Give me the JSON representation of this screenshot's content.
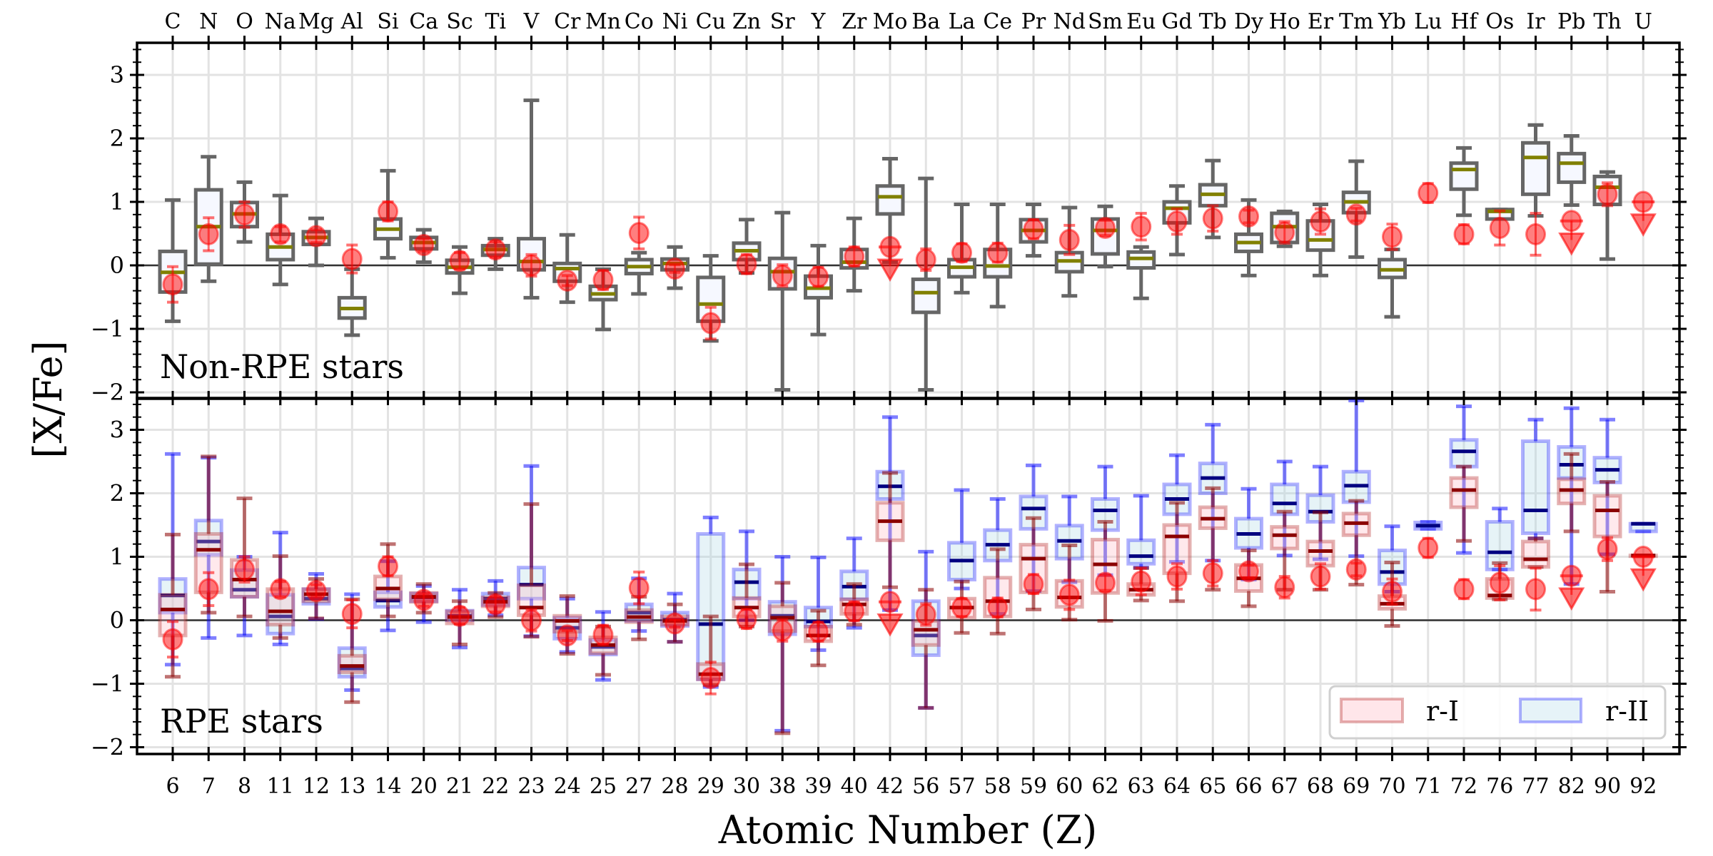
{
  "chart_data": {
    "type": "box",
    "xlabel": "Atomic Number (Z)",
    "ylabel": "[X/Fe]",
    "ylim": [
      -2.1,
      3.5
    ],
    "yticks": [
      -2,
      -1,
      0,
      1,
      2,
      3
    ],
    "grid": true,
    "legend_position": "bottom-right",
    "colors": {
      "non_box": "#666666",
      "non_median": "#808000",
      "rI_median": "#8b0000",
      "rII_median": "#000080",
      "star": "#ff0000"
    },
    "panels": [
      {
        "id": "top",
        "label": "Non-RPE stars",
        "series": "non"
      },
      {
        "id": "bottom",
        "label": "RPE stars",
        "series": "r"
      }
    ],
    "legend": [
      {
        "key": "rI",
        "label": "r-I"
      },
      {
        "key": "rII",
        "label": "r-II"
      }
    ],
    "box_format": [
      "whisker_low",
      "q1",
      "median",
      "q3",
      "whisker_high"
    ],
    "elements": [
      {
        "sym": "C",
        "z": "6",
        "non": [
          -0.88,
          -0.42,
          -0.11,
          0.22,
          1.03
        ],
        "rI": [
          -0.89,
          -0.24,
          0.17,
          0.4,
          1.35
        ],
        "rII": [
          -0.7,
          0.12,
          0.39,
          0.65,
          2.62
        ],
        "star": {
          "v": -0.3,
          "e": 0.28
        }
      },
      {
        "sym": "N",
        "z": "7",
        "non": [
          -0.25,
          0.02,
          0.61,
          1.19,
          1.71
        ],
        "rI": [
          0.12,
          0.44,
          1.11,
          1.36,
          2.58
        ],
        "rII": [
          -0.28,
          1.03,
          1.24,
          1.57,
          2.56
        ],
        "star": {
          "v": 0.49,
          "e": 0.26
        }
      },
      {
        "sym": "O",
        "z": "8",
        "non": [
          0.37,
          0.61,
          0.81,
          0.99,
          1.31
        ],
        "rI": [
          0.06,
          0.37,
          0.64,
          0.95,
          1.92
        ],
        "rII": [
          -0.24,
          0.37,
          0.48,
          0.79,
          1.0
        ],
        "star": {
          "v": 0.8,
          "e": 0.2
        }
      },
      {
        "sym": "Na",
        "z": "11",
        "non": [
          -0.3,
          0.09,
          0.29,
          0.49,
          1.1
        ],
        "rI": [
          -0.28,
          -0.07,
          0.14,
          0.49,
          1.01
        ],
        "rII": [
          -0.38,
          -0.21,
          0.06,
          0.4,
          1.38
        ],
        "star": {
          "v": 0.49,
          "e": 0.12
        }
      },
      {
        "sym": "Mg",
        "z": "12",
        "non": [
          0,
          0.33,
          0.44,
          0.53,
          0.74
        ],
        "rI": [
          0.03,
          0.3,
          0.41,
          0.49,
          0.65
        ],
        "rII": [
          0.02,
          0.26,
          0.34,
          0.49,
          0.73
        ],
        "star": {
          "v": 0.46,
          "e": 0.1
        }
      },
      {
        "sym": "Al",
        "z": "13",
        "non": [
          -1.1,
          -0.83,
          -0.68,
          -0.51,
          -0.06
        ],
        "rI": [
          -1.29,
          -0.82,
          -0.72,
          -0.56,
          0.33
        ],
        "rII": [
          -1.1,
          -0.89,
          -0.76,
          -0.44,
          0.41
        ],
        "star": {
          "v": 0.1,
          "e": 0.22
        }
      },
      {
        "sym": "Si",
        "z": "14",
        "non": [
          0.12,
          0.42,
          0.57,
          0.73,
          1.49
        ],
        "rI": [
          0.06,
          0.33,
          0.5,
          0.69,
          1.2
        ],
        "rII": [
          -0.16,
          0.21,
          0.31,
          0.44,
          0.93
        ],
        "star": {
          "v": 0.85,
          "e": 0.15
        }
      },
      {
        "sym": "Ca",
        "z": "20",
        "non": [
          0.05,
          0.26,
          0.36,
          0.44,
          0.56
        ],
        "rI": [
          0.12,
          0.29,
          0.37,
          0.43,
          0.57
        ],
        "rII": [
          -0.03,
          0.3,
          0.36,
          0.42,
          0.54
        ],
        "star": {
          "v": 0.32,
          "e": 0.1
        }
      },
      {
        "sym": "Sc",
        "z": "21",
        "non": [
          -0.44,
          -0.12,
          -0.03,
          0.08,
          0.29
        ],
        "rI": [
          -0.38,
          -0.05,
          0.05,
          0.14,
          0.3
        ],
        "rII": [
          -0.43,
          0,
          0.07,
          0.15,
          0.48
        ],
        "star": {
          "v": 0.07,
          "e": 0.13
        }
      },
      {
        "sym": "Ti",
        "z": "22",
        "non": [
          -0.06,
          0.16,
          0.25,
          0.31,
          0.42
        ],
        "rI": [
          0.05,
          0.22,
          0.29,
          0.36,
          0.43
        ],
        "rII": [
          0.08,
          0.24,
          0.34,
          0.42,
          0.62
        ],
        "star": {
          "v": 0.25,
          "e": 0.12
        }
      },
      {
        "sym": "V",
        "z": "23",
        "non": [
          -0.51,
          -0.07,
          0.06,
          0.42,
          2.6
        ],
        "rI": [
          -0.26,
          0.08,
          0.2,
          0.55,
          1.83
        ],
        "rII": [
          -0.25,
          0.34,
          0.56,
          0.83,
          2.43
        ],
        "star": {
          "v": 0.0,
          "e": 0.17
        }
      },
      {
        "sym": "Cr",
        "z": "24",
        "non": [
          -0.58,
          -0.25,
          -0.05,
          0.03,
          0.48
        ],
        "rI": [
          -0.53,
          -0.18,
          -0.01,
          0.07,
          0.38
        ],
        "rII": [
          -0.5,
          -0.29,
          -0.12,
          0.04,
          0.34
        ],
        "star": {
          "v": -0.24,
          "e": 0.08
        }
      },
      {
        "sym": "Mn",
        "z": "25",
        "non": [
          -1.01,
          -0.54,
          -0.45,
          -0.33,
          -0.06
        ],
        "rI": [
          -0.86,
          -0.52,
          -0.39,
          -0.27,
          -0.1
        ],
        "rII": [
          -0.94,
          -0.54,
          -0.42,
          -0.31,
          0.13
        ],
        "star": {
          "v": -0.23,
          "e": 0.15
        }
      },
      {
        "sym": "Co",
        "z": "27",
        "non": [
          -0.45,
          -0.13,
          -0.02,
          0.09,
          0.2
        ],
        "rI": [
          -0.3,
          -0.03,
          0.05,
          0.16,
          0.37
        ],
        "rII": [
          -0.17,
          -0.01,
          0.12,
          0.25,
          0.66
        ],
        "star": {
          "v": 0.51,
          "e": 0.25
        }
      },
      {
        "sym": "Ni",
        "z": "28",
        "non": [
          -0.36,
          -0.07,
          0.03,
          0.1,
          0.29
        ],
        "rI": [
          -0.34,
          -0.07,
          -0.01,
          0.06,
          0.25
        ],
        "rII": [
          -0.34,
          -0.09,
          0.01,
          0.12,
          0.42
        ],
        "star": {
          "v": -0.05,
          "e": 0.06
        }
      },
      {
        "sym": "Cu",
        "z": "29",
        "non": [
          -1.19,
          -0.88,
          -0.61,
          -0.19,
          0.15
        ],
        "rI": [
          -1.02,
          -0.93,
          -0.85,
          -0.69,
          0.06
        ],
        "rII": [
          -1.05,
          -0.93,
          -0.06,
          1.36,
          1.62
        ],
        "star": {
          "v": -0.91,
          "e": 0.25
        }
      },
      {
        "sym": "Zn",
        "z": "30",
        "non": [
          -0.12,
          0.09,
          0.23,
          0.35,
          0.72
        ],
        "rI": [
          -0.1,
          0.06,
          0.2,
          0.35,
          0.88
        ],
        "rII": [
          0,
          0.34,
          0.6,
          0.8,
          1.4
        ],
        "star": {
          "v": 0.02,
          "e": 0.15
        }
      },
      {
        "sym": "Sr",
        "z": "38",
        "non": [
          -1.96,
          -0.37,
          -0.1,
          0.11,
          0.83
        ],
        "rI": [
          -1.78,
          -0.17,
          0.04,
          0.22,
          0.59
        ],
        "rII": [
          -1.74,
          -0.22,
          0.07,
          0.29,
          1.0
        ],
        "star": {
          "v": -0.16,
          "e": 0.17
        }
      },
      {
        "sym": "Y",
        "z": "39",
        "non": [
          -1.09,
          -0.51,
          -0.36,
          -0.17,
          0.31
        ],
        "rI": [
          -0.71,
          -0.33,
          -0.24,
          -0.1,
          0.15
        ],
        "rII": [
          -0.47,
          -0.1,
          -0.02,
          0.2,
          0.99
        ],
        "star": {
          "v": -0.18,
          "e": 0.15
        }
      },
      {
        "sym": "Zr",
        "z": "40",
        "non": [
          -0.4,
          -0.04,
          0.05,
          0.25,
          0.74
        ],
        "rI": [
          -0.07,
          0.1,
          0.25,
          0.33,
          0.57
        ],
        "rII": [
          -0.12,
          0.33,
          0.53,
          0.77,
          1.29
        ],
        "star": {
          "v": 0.14,
          "e": 0.15
        }
      },
      {
        "sym": "Mo",
        "z": "42",
        "non": [
          0.05,
          0.81,
          1.08,
          1.25,
          1.68
        ],
        "rI": [
          0.52,
          1.26,
          1.56,
          1.85,
          2.32
        ],
        "rII": [
          0.16,
          1.91,
          2.11,
          2.34,
          3.2
        ],
        "star": {
          "v": 0.29,
          "e": 0,
          "limit": true
        }
      },
      {
        "sym": "Ba",
        "z": "56",
        "non": [
          -1.96,
          -0.74,
          -0.43,
          -0.22,
          1.37
        ],
        "rI": [
          -1.38,
          -0.39,
          -0.15,
          -0.01,
          0.48
        ],
        "rII": [
          -1.38,
          -0.55,
          -0.24,
          0.3,
          1.08
        ],
        "star": {
          "v": 0.09,
          "e": 0.17
        }
      },
      {
        "sym": "La",
        "z": "57",
        "non": [
          -0.43,
          -0.18,
          -0.03,
          0.09,
          0.96
        ],
        "rI": [
          -0.2,
          0.04,
          0.2,
          0.34,
          0.61
        ],
        "rII": [
          0.5,
          0.64,
          0.94,
          1.22,
          2.05
        ],
        "star": {
          "v": 0.2,
          "e": 0.14
        }
      },
      {
        "sym": "Ce",
        "z": "58",
        "non": [
          -0.65,
          -0.18,
          -0.01,
          0.25,
          0.96
        ],
        "rI": [
          -0.21,
          0.06,
          0.3,
          0.67,
          1.12
        ],
        "rII": [
          0.1,
          0.94,
          1.19,
          1.42,
          1.91
        ],
        "star": {
          "v": 0.2,
          "e": 0.15
        }
      },
      {
        "sym": "Pr",
        "z": "59",
        "non": [
          0.15,
          0.37,
          0.55,
          0.72,
          0.96
        ],
        "rI": [
          0.17,
          0.44,
          0.97,
          1.19,
          1.61
        ],
        "rII": [
          0.46,
          1.44,
          1.76,
          1.95,
          2.44
        ],
        "star": {
          "v": 0.57,
          "e": 0.15
        }
      },
      {
        "sym": "Nd",
        "z": "60",
        "non": [
          -0.48,
          -0.1,
          0.07,
          0.2,
          0.91
        ],
        "rI": [
          0.01,
          0.21,
          0.36,
          0.62,
          1.18
        ],
        "rII": [
          0.6,
          0.97,
          1.25,
          1.49,
          1.95
        ],
        "star": {
          "v": 0.4,
          "e": 0.23
        }
      },
      {
        "sym": "Sm",
        "z": "62",
        "non": [
          -0.02,
          0.18,
          0.55,
          0.73,
          0.93
        ],
        "rI": [
          -0.01,
          0.43,
          0.88,
          1.27,
          1.55
        ],
        "rII": [
          0.71,
          1.42,
          1.73,
          1.91,
          2.42
        ],
        "star": {
          "v": 0.59,
          "e": 0.12
        }
      },
      {
        "sym": "Eu",
        "z": "63",
        "non": [
          -0.52,
          -0.04,
          0.11,
          0.21,
          0.29
        ],
        "rI": [
          0.31,
          0.4,
          0.48,
          0.57,
          0.82
        ],
        "rII": [
          0.83,
          0.89,
          1.01,
          1.26,
          1.96
        ],
        "star": {
          "v": 0.61,
          "e": 0.21
        }
      },
      {
        "sym": "Gd",
        "z": "64",
        "non": [
          0.17,
          0.67,
          0.9,
          1.0,
          1.25
        ],
        "rI": [
          0.3,
          0.74,
          1.32,
          1.5,
          1.85
        ],
        "rII": [
          0.92,
          1.67,
          1.91,
          2.14,
          2.6
        ],
        "star": {
          "v": 0.69,
          "e": 0.2
        }
      },
      {
        "sym": "Tb",
        "z": "65",
        "non": [
          0.44,
          0.94,
          1.12,
          1.27,
          1.65
        ],
        "rI": [
          0.48,
          1.45,
          1.6,
          1.78,
          2.08
        ],
        "rII": [
          0.94,
          2.0,
          2.24,
          2.47,
          3.08
        ],
        "star": {
          "v": 0.74,
          "e": 0.2
        }
      },
      {
        "sym": "Dy",
        "z": "66",
        "non": [
          -0.16,
          0.22,
          0.36,
          0.49,
          1.03
        ],
        "rI": [
          0.22,
          0.46,
          0.66,
          0.87,
          1.1
        ],
        "rII": [
          0.64,
          1.14,
          1.36,
          1.6,
          2.07
        ],
        "star": {
          "v": 0.77,
          "e": 0.1
        }
      },
      {
        "sym": "Ho",
        "z": "67",
        "non": [
          0.3,
          0.36,
          0.61,
          0.82,
          0.85
        ],
        "rI": [
          0.48,
          1.13,
          1.34,
          1.47,
          1.71
        ],
        "rII": [
          1.02,
          1.67,
          1.84,
          2.14,
          2.5
        ],
        "star": {
          "v": 0.52,
          "e": 0.17
        }
      },
      {
        "sym": "Er",
        "z": "68",
        "non": [
          -0.16,
          0.24,
          0.4,
          0.7,
          0.96
        ],
        "rI": [
          0.48,
          0.86,
          1.09,
          1.24,
          1.7
        ],
        "rII": [
          0.96,
          1.55,
          1.71,
          1.97,
          2.42
        ],
        "star": {
          "v": 0.69,
          "e": 0.2
        }
      },
      {
        "sym": "Tm",
        "z": "69",
        "non": [
          0.13,
          0.83,
          1.0,
          1.15,
          1.64
        ],
        "rI": [
          0.56,
          1.34,
          1.53,
          1.68,
          1.88
        ],
        "rII": [
          1.01,
          1.86,
          2.12,
          2.34,
          3.46
        ],
        "star": {
          "v": 0.8,
          "e": 0.1
        }
      },
      {
        "sym": "Yb",
        "z": "70",
        "non": [
          -0.81,
          -0.19,
          -0.07,
          0.09,
          0.25
        ],
        "rI": [
          -0.09,
          0.18,
          0.26,
          0.38,
          0.91
        ],
        "rII": [
          0.45,
          0.57,
          0.76,
          1.1,
          1.48
        ],
        "star": {
          "v": 0.45,
          "e": 0.2
        }
      },
      {
        "sym": "Lu",
        "z": "71",
        "non": null,
        "rI": null,
        "rII": [
          1.44,
          1.44,
          1.49,
          1.54,
          1.55
        ],
        "star": {
          "v": 1.14,
          "e": 0.15
        }
      },
      {
        "sym": "Hf",
        "z": "72",
        "non": [
          0.79,
          1.2,
          1.51,
          1.61,
          1.85
        ],
        "rI": [
          1.25,
          1.78,
          2.05,
          2.24,
          2.42
        ],
        "rII": [
          1.06,
          2.42,
          2.66,
          2.84,
          3.37
        ],
        "star": {
          "v": 0.49,
          "e": 0.15
        }
      },
      {
        "sym": "Os",
        "z": "76",
        "non": [
          0.73,
          0.73,
          0.85,
          0.88,
          0.88
        ],
        "rI": [
          0.33,
          0.35,
          0.39,
          0.65,
          0.9
        ],
        "rII": [
          0.8,
          0.8,
          1.07,
          1.55,
          1.76
        ],
        "star": {
          "v": 0.59,
          "e": 0.27
        }
      },
      {
        "sym": "Ir",
        "z": "77",
        "non": [
          0.78,
          1.12,
          1.7,
          1.93,
          2.21
        ],
        "rI": [
          0.84,
          0.84,
          0.96,
          1.24,
          1.29
        ],
        "rII": [
          1.29,
          1.37,
          1.73,
          2.82,
          3.16
        ],
        "star": {
          "v": 0.49,
          "e": 0.33
        }
      },
      {
        "sym": "Pb",
        "z": "82",
        "non": [
          0.95,
          1.31,
          1.61,
          1.76,
          2.04
        ],
        "rI": [
          1.4,
          1.84,
          2.05,
          2.22,
          2.62
        ],
        "rII": [
          0.57,
          2.24,
          2.45,
          2.73,
          3.34
        ],
        "star": {
          "v": 0.7,
          "e": 0,
          "limit": true
        }
      },
      {
        "sym": "Th",
        "z": "90",
        "non": [
          0.1,
          0.96,
          1.23,
          1.4,
          1.47
        ],
        "rI": [
          0.45,
          1.32,
          1.73,
          1.96,
          2.18
        ],
        "rII": [
          1.04,
          2.17,
          2.37,
          2.56,
          3.16
        ],
        "star": {
          "v": 1.12,
          "e": 0.18
        }
      },
      {
        "sym": "U",
        "z": "92",
        "non": null,
        "rI": [
          1.02,
          1.02,
          1.02,
          1.02,
          1.02
        ],
        "rII": [
          1.4,
          1.4,
          1.52,
          1.52,
          1.52
        ],
        "star": {
          "v": 1.0,
          "e": 0,
          "limit": true
        }
      }
    ]
  }
}
